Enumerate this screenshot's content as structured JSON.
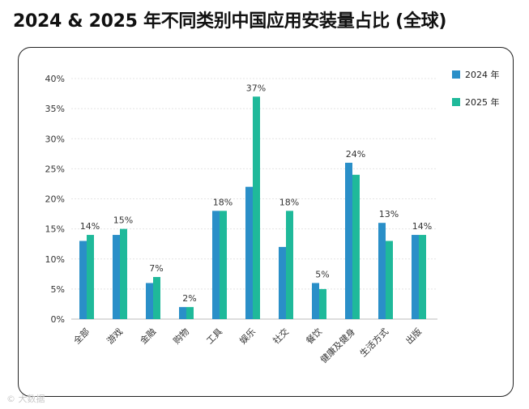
{
  "title": "2024 & 2025 年不同类别中国应用安装量占比 (全球)",
  "watermark": "© 大数据",
  "chart_data": {
    "type": "bar",
    "title": "2024 & 2025 年不同类别中国应用安装量占比 (全球)",
    "categories": [
      "全部",
      "游戏",
      "金融",
      "购物",
      "工具",
      "娱乐",
      "社交",
      "餐饮",
      "健康及健身",
      "生活方式",
      "出版"
    ],
    "series": [
      {
        "name": "2024 年",
        "color": "#2a8fc8",
        "values": [
          13,
          14,
          6,
          2,
          18,
          22,
          12,
          6,
          26,
          16,
          14
        ]
      },
      {
        "name": "2025 年",
        "color": "#1fb99a",
        "values": [
          14,
          15,
          7,
          2,
          18,
          37,
          18,
          5,
          24,
          13,
          14
        ]
      }
    ],
    "data_labels": [
      "14%",
      "15%",
      "7%",
      "2%",
      "18%",
      "37%",
      "18%",
      "5%",
      "24%",
      "13%",
      "14%"
    ],
    "ylim": [
      0,
      40
    ],
    "yticks": [
      "0%",
      "5%",
      "10%",
      "15%",
      "20%",
      "25%",
      "30%",
      "35%",
      "40%"
    ],
    "grid": true,
    "legend": "top-right"
  }
}
